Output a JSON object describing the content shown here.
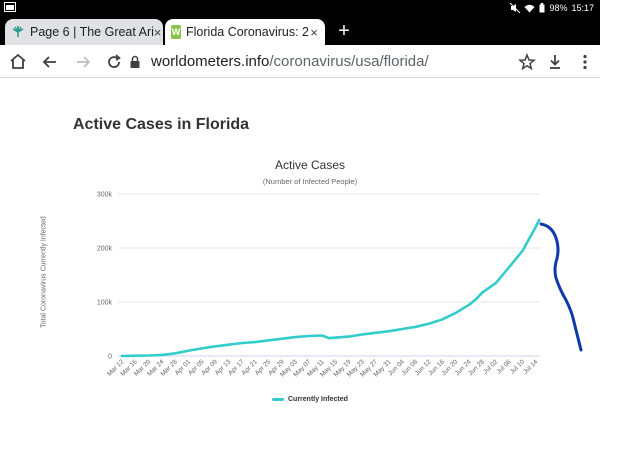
{
  "status_bar": {
    "battery": "98%",
    "time": "15:17"
  },
  "tabs": [
    {
      "title": "Page 6 | The Great Ari",
      "close": "×",
      "active": false
    },
    {
      "title": "Florida Coronavirus: 2",
      "close": "×",
      "active": true
    }
  ],
  "new_tab_label": "+",
  "toolbar": {
    "url_domain": "worldometers.info",
    "url_path": "/coronavirus/usa/florida/"
  },
  "page": {
    "heading": "Active Cases in Florida"
  },
  "chart_data": {
    "type": "line",
    "title": "Active Cases",
    "subtitle": "(Number of Infected People)",
    "ylabel": "Total Coronavirus Currently Infected",
    "xlabel": "",
    "ylim": [
      0,
      300000
    ],
    "y_ticks": [
      0,
      100000,
      200000,
      300000
    ],
    "y_tick_labels": [
      "0",
      "100k",
      "200k",
      "300k"
    ],
    "grid": true,
    "legend": "bottom-center",
    "x_tick_labels": [
      "Mar 12",
      "Mar 16",
      "Mar 20",
      "Mar 24",
      "Mar 28",
      "Apr 01",
      "Apr 05",
      "Apr 09",
      "Apr 13",
      "Apr 17",
      "Apr 21",
      "Apr 25",
      "Apr 29",
      "May 03",
      "May 07",
      "May 11",
      "May 15",
      "May 19",
      "May 23",
      "May 27",
      "May 31",
      "Jun 04",
      "Jun 08",
      "Jun 12",
      "Jun 16",
      "Jun 20",
      "Jun 24",
      "Jun 28",
      "Jul 02",
      "Jul 06",
      "Jul 10",
      "Jul 14"
    ],
    "series": [
      {
        "name": "Currently Infected",
        "color": "#33cccc",
        "x": [
          "Mar 12",
          "Mar 16",
          "Mar 20",
          "Mar 24",
          "Mar 28",
          "Apr 01",
          "Apr 05",
          "Apr 09",
          "Apr 13",
          "Apr 17",
          "Apr 21",
          "Apr 25",
          "Apr 29",
          "May 03",
          "May 07",
          "May 11",
          "May 13",
          "May 15",
          "May 19",
          "May 23",
          "May 27",
          "May 31",
          "Jun 04",
          "Jun 08",
          "Jun 12",
          "Jun 16",
          "Jun 20",
          "Jun 24",
          "Jun 26",
          "Jun 28",
          "Jul 02",
          "Jul 06",
          "Jul 10",
          "Jul 14",
          "Jul 15"
        ],
        "values": [
          0,
          500,
          1000,
          2000,
          5000,
          10000,
          14000,
          18000,
          21000,
          24000,
          26000,
          29000,
          32000,
          35000,
          37000,
          38000,
          33000,
          34000,
          36000,
          40000,
          43000,
          46000,
          50000,
          54000,
          60000,
          68000,
          80000,
          95000,
          105000,
          118000,
          135000,
          165000,
          195000,
          240000,
          252000
        ]
      }
    ]
  },
  "annotation": {
    "color": "#0d3aa8"
  }
}
